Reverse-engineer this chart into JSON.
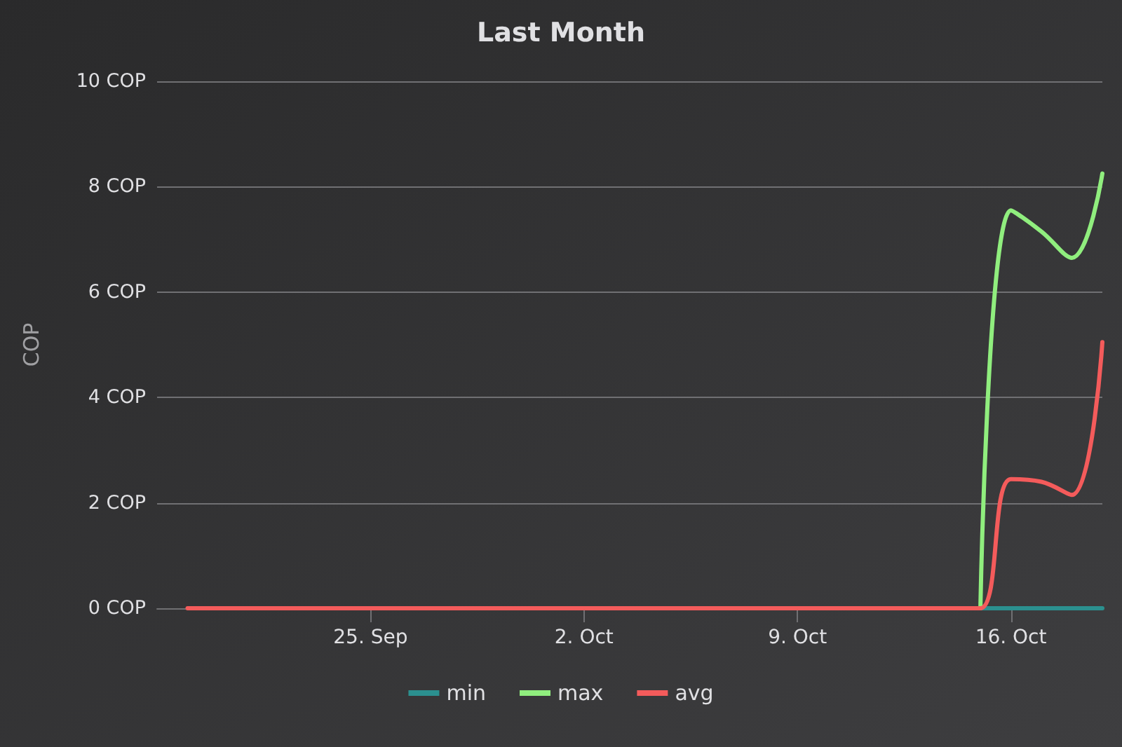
{
  "chart_data": {
    "type": "line",
    "title": "Last Month",
    "ylabel": "COP",
    "x": [
      "--09-19",
      "--09-20",
      "--09-21",
      "--09-22",
      "--09-23",
      "--09-24",
      "--09-25",
      "--09-26",
      "--09-27",
      "--09-28",
      "--09-29",
      "--09-30",
      "--10-01",
      "--10-02",
      "--10-03",
      "--10-04",
      "--10-05",
      "--10-06",
      "--10-07",
      "--10-08",
      "--10-09",
      "--10-10",
      "--10-11",
      "--10-12",
      "--10-13",
      "--10-14",
      "--10-15",
      "--10-16",
      "--10-17",
      "--10-18",
      "--10-19"
    ],
    "series": [
      {
        "name": "min",
        "color": "#2b908f",
        "values": [
          null,
          null,
          null,
          null,
          null,
          null,
          null,
          null,
          null,
          null,
          null,
          null,
          null,
          null,
          null,
          null,
          null,
          null,
          null,
          null,
          null,
          null,
          null,
          null,
          null,
          null,
          0,
          0,
          0,
          0,
          0
        ]
      },
      {
        "name": "max",
        "color": "#90ee7e",
        "values": [
          null,
          null,
          null,
          null,
          null,
          null,
          null,
          null,
          null,
          null,
          null,
          null,
          null,
          null,
          null,
          null,
          null,
          null,
          null,
          null,
          null,
          null,
          null,
          null,
          null,
          null,
          0,
          7.55,
          7.15,
          6.65,
          8.25
        ]
      },
      {
        "name": "avg",
        "color": "#f45b5b",
        "values": [
          0,
          0,
          0,
          0,
          0,
          0,
          0,
          0,
          0,
          0,
          0,
          0,
          0,
          0,
          0,
          0,
          0,
          0,
          0,
          0,
          0,
          0,
          0,
          0,
          0,
          0,
          0,
          2.45,
          2.4,
          2.15,
          5.05
        ]
      }
    ],
    "xlim": [
      "--09-18",
      "--10-19"
    ],
    "xticks": [
      {
        "value": "--09-25",
        "label": "25. Sep"
      },
      {
        "value": "--10-02",
        "label": "2. Oct"
      },
      {
        "value": "--10-09",
        "label": "9. Oct"
      },
      {
        "value": "--10-16",
        "label": "16. Oct"
      }
    ],
    "ylim": [
      0,
      10
    ],
    "yticks": [
      {
        "value": 0,
        "label": "0 COP"
      },
      {
        "value": 2,
        "label": "2 COP"
      },
      {
        "value": 4,
        "label": "4 COP"
      },
      {
        "value": 6,
        "label": "6 COP"
      },
      {
        "value": 8,
        "label": "8 COP"
      },
      {
        "value": 10,
        "label": "10 COP"
      }
    ],
    "grid": "y",
    "legend": "bottom",
    "marker": "none",
    "line_style": "solid"
  }
}
